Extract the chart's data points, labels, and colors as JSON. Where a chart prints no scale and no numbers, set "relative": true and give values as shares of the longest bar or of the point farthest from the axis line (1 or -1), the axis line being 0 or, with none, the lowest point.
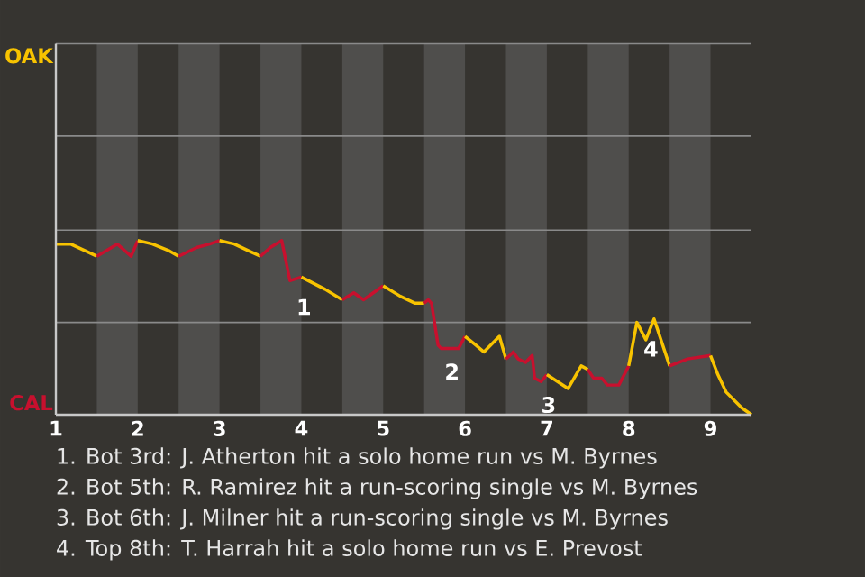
{
  "chart_data": {
    "type": "line",
    "relative": true,
    "xlim": [
      1,
      9.5
    ],
    "xticks": [
      {
        "value": 1,
        "label": "1"
      },
      {
        "value": 2,
        "label": "2"
      },
      {
        "value": 3,
        "label": "3"
      },
      {
        "value": 4,
        "label": "4"
      },
      {
        "value": 5,
        "label": "5"
      },
      {
        "value": 6,
        "label": "6"
      },
      {
        "value": 7,
        "label": "7"
      },
      {
        "value": 8,
        "label": "8"
      },
      {
        "value": 9,
        "label": "9"
      }
    ],
    "ref_lines": [
      {
        "axis": "y",
        "value": 0.53,
        "color": "#8a8a8a"
      },
      {
        "axis": "y",
        "value": 1.06,
        "color": "#8a8a8a"
      },
      {
        "axis": "y",
        "value": 1.6,
        "color": "#8a8a8a"
      },
      {
        "axis": "y",
        "value": 2.13,
        "color": "#8a8a8a"
      }
    ],
    "marker": "none",
    "line_style": "solid",
    "series": [
      {
        "name": "OAK",
        "color": "#f8c300",
        "x": [
          1.0,
          1.18,
          1.5
        ],
        "values": [
          0.98,
          0.98,
          0.91
        ]
      },
      {
        "name": "CAL",
        "color": "#c8102e",
        "x": [
          1.5,
          1.75,
          1.92,
          2.0
        ],
        "values": [
          0.91,
          0.98,
          0.91,
          1.0
        ]
      },
      {
        "color": "#f8c300",
        "x": [
          2.0,
          2.18,
          2.39,
          2.5
        ],
        "values": [
          1.0,
          0.98,
          0.94,
          0.91
        ]
      },
      {
        "color": "#c8102e",
        "x": [
          2.5,
          2.72,
          2.88,
          3.0
        ],
        "values": [
          0.91,
          0.96,
          0.98,
          1.0
        ]
      },
      {
        "color": "#f8c300",
        "x": [
          3.0,
          3.18,
          3.36,
          3.5
        ],
        "values": [
          1.0,
          0.98,
          0.94,
          0.91
        ]
      },
      {
        "color": "#c8102e",
        "x": [
          3.5,
          3.62,
          3.76,
          3.86,
          4.0
        ],
        "values": [
          0.91,
          0.96,
          1.0,
          0.77,
          0.79
        ]
      },
      {
        "color": "#f8c300",
        "x": [
          4.0,
          4.29,
          4.5
        ],
        "values": [
          0.79,
          0.72,
          0.66
        ]
      },
      {
        "color": "#c8102e",
        "x": [
          4.5,
          4.64,
          4.76,
          5.0
        ],
        "values": [
          0.66,
          0.7,
          0.66,
          0.74
        ]
      },
      {
        "color": "#f8c300",
        "x": [
          5.0,
          5.21,
          5.39,
          5.5
        ],
        "values": [
          0.74,
          0.68,
          0.64,
          0.64
        ]
      },
      {
        "color": "#c8102e",
        "x": [
          5.5,
          5.55,
          5.59,
          5.67,
          5.71,
          5.92,
          6.0
        ],
        "values": [
          0.64,
          0.66,
          0.64,
          0.4,
          0.38,
          0.38,
          0.45
        ]
      },
      {
        "color": "#f8c300",
        "x": [
          6.0,
          6.13,
          6.23,
          6.42,
          6.5
        ],
        "values": [
          0.45,
          0.4,
          0.36,
          0.45,
          0.32
        ]
      },
      {
        "color": "#c8102e",
        "x": [
          6.5,
          6.59,
          6.65,
          6.74,
          6.82,
          6.85,
          6.93,
          7.0
        ],
        "values": [
          0.32,
          0.36,
          0.32,
          0.3,
          0.34,
          0.21,
          0.19,
          0.23
        ]
      },
      {
        "color": "#f8c300",
        "x": [
          7.0,
          7.26,
          7.42,
          7.5
        ],
        "values": [
          0.23,
          0.15,
          0.28,
          0.26
        ]
      },
      {
        "color": "#c8102e",
        "x": [
          7.5,
          7.57,
          7.67,
          7.74,
          7.88,
          8.0
        ],
        "values": [
          0.26,
          0.21,
          0.21,
          0.17,
          0.17,
          0.28
        ]
      },
      {
        "color": "#f8c300",
        "x": [
          8.0,
          8.1,
          8.21,
          8.31,
          8.5
        ],
        "values": [
          0.28,
          0.53,
          0.43,
          0.55,
          0.28
        ]
      },
      {
        "color": "#c8102e",
        "x": [
          8.5,
          8.72,
          9.0
        ],
        "values": [
          0.28,
          0.32,
          0.34
        ]
      },
      {
        "color": "#f8c300",
        "x": [
          9.0,
          9.09,
          9.19,
          9.38,
          9.5
        ],
        "values": [
          0.34,
          0.23,
          0.13,
          0.04,
          0
        ]
      }
    ],
    "bands": [
      {
        "axis": "x",
        "from": 1.5,
        "to": 2,
        "color": "#4f4e4c"
      },
      {
        "axis": "x",
        "from": 2.5,
        "to": 3,
        "color": "#4f4e4c"
      },
      {
        "axis": "x",
        "from": 3.5,
        "to": 4,
        "color": "#4f4e4c"
      },
      {
        "axis": "x",
        "from": 4.5,
        "to": 5,
        "color": "#4f4e4c"
      },
      {
        "axis": "x",
        "from": 5.5,
        "to": 6,
        "color": "#4f4e4c"
      },
      {
        "axis": "x",
        "from": 6.5,
        "to": 7,
        "color": "#4f4e4c"
      },
      {
        "axis": "x",
        "from": 7.5,
        "to": 8,
        "color": "#4f4e4c"
      },
      {
        "axis": "x",
        "from": 8.5,
        "to": 9,
        "color": "#4f4e4c"
      }
    ],
    "annotations": [
      {
        "text": "1",
        "x": 3.86,
        "y": 0.77
      },
      {
        "text": "2",
        "x": 5.67,
        "y": 0.4
      },
      {
        "text": "3",
        "x": 6.85,
        "y": 0.21
      },
      {
        "text": "4",
        "x": 8.1,
        "y": 0.53
      },
      "1. Bot 3rd: J. Atherton hit a solo home run vs M. Byrnes",
      "2. Bot 5th: R. Ramirez hit a run-scoring single vs M. Byrnes",
      "3. Bot 6th: J. Milner hit a run-scoring single vs M. Byrnes",
      "4. Top 8th: T. Harrah hit a solo home run vs E. Prevost"
    ]
  }
}
